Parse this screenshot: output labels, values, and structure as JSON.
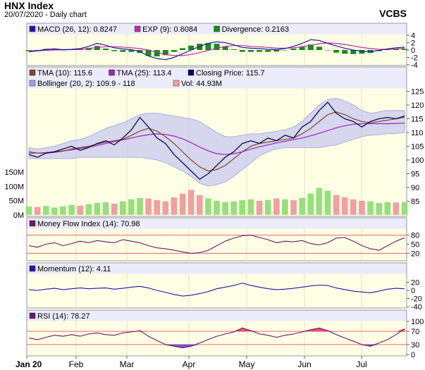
{
  "header": {
    "title": "HNX Index",
    "subtitle": "20/07/2020 - Daily chart",
    "brand": "VCBS"
  },
  "colors": {
    "plot_bg": "#ffffe6",
    "legend_bg": "#ebebfa",
    "grid": "#e2e2c0",
    "macd": "#1a1aa6",
    "exp": "#c02aa0",
    "divergence": "#1a8a1a",
    "tma10": "#7a4a2a",
    "tma25": "#a020c0",
    "close": "#0a0a50",
    "bollinger_fill": "#c8c8ee",
    "bollinger_line": "#a0a0e0",
    "vol_up": "#96e07a",
    "vol_down": "#f0a0a0",
    "mfi": "#6a1a6a",
    "momentum": "#1a1aa6",
    "rsi": "#6a1a6a",
    "ref_line": "#e06a6a",
    "rsi_over": "#e0506a",
    "rsi_under": "#6a5ae0"
  },
  "x_axis": {
    "labels": [
      "Jan 20",
      "Feb",
      "Mar",
      "Apr",
      "May",
      "Jun",
      "Jul"
    ]
  },
  "chart_data": [
    {
      "type": "line",
      "panel": "macd",
      "legend": [
        {
          "label": "MACD (26, 12): 0.8247",
          "color": "#1a1aa6"
        },
        {
          "label": "EXP (9): 0.6084",
          "color": "#c02aa0"
        },
        {
          "label": "Divergence: 0.2163",
          "color": "#1a8a1a"
        }
      ],
      "ylim": [
        -4,
        4
      ],
      "yticks": [
        "4",
        "2",
        "0",
        "-2",
        "-4"
      ],
      "series": [
        {
          "name": "MACD (26, 12)",
          "values": [
            -0.5,
            -0.2,
            0.2,
            0.3,
            0.1,
            0.2,
            0.4,
            1.0,
            1.8,
            1.3,
            0.6,
            0.3,
            0.1,
            -0.4,
            -1.6,
            -2.3,
            -2.6,
            -2.0,
            -1.0,
            0.0,
            1.0,
            1.8,
            2.2,
            2.0,
            1.4,
            0.7,
            0.5,
            0.4,
            0.2,
            0.1,
            0.4,
            1.0,
            1.8,
            2.8,
            2.6,
            1.8,
            1.1,
            0.5,
            0.0,
            -0.3,
            -0.4,
            -0.1,
            0.3,
            0.6,
            0.8
          ]
        },
        {
          "name": "EXP (9)",
          "values": [
            -0.2,
            -0.2,
            -0.1,
            0.0,
            0.1,
            0.1,
            0.2,
            0.4,
            0.7,
            0.9,
            0.9,
            0.8,
            0.6,
            0.4,
            0.0,
            -0.6,
            -1.2,
            -1.5,
            -1.5,
            -1.2,
            -0.7,
            -0.1,
            0.5,
            1.0,
            1.2,
            1.2,
            1.0,
            0.9,
            0.7,
            0.5,
            0.5,
            0.6,
            0.9,
            1.3,
            1.7,
            1.9,
            1.8,
            1.5,
            1.1,
            0.7,
            0.4,
            0.2,
            0.2,
            0.3,
            0.5
          ]
        },
        {
          "name": "Divergence",
          "values": [
            -0.3,
            0.0,
            0.3,
            0.3,
            0.0,
            0.1,
            0.2,
            0.6,
            1.1,
            0.4,
            -0.3,
            -0.5,
            -0.5,
            -0.8,
            -1.6,
            -1.7,
            -1.4,
            -0.5,
            0.5,
            1.2,
            1.7,
            1.9,
            1.7,
            1.0,
            0.2,
            -0.5,
            -0.5,
            -0.5,
            -0.5,
            -0.4,
            -0.1,
            0.4,
            0.9,
            1.5,
            0.9,
            -0.1,
            -0.7,
            -1.0,
            -1.1,
            -1.0,
            -0.8,
            -0.3,
            0.1,
            0.3,
            0.3
          ]
        }
      ]
    },
    {
      "type": "line",
      "panel": "price",
      "legend": [
        {
          "label": "TMA (10): 115.6",
          "color": "#7a4a2a"
        },
        {
          "label": "TMA (25): 113.4",
          "color": "#a020c0"
        },
        {
          "label": "Closing Price: 115.7",
          "color": "#0a0a50"
        },
        {
          "label": "Bollinger (20, 2): 109.9 - 118",
          "color": "#a0a0e0"
        },
        {
          "label": "Vol: 44.93M",
          "color": "#f0a0a0"
        }
      ],
      "ylim": [
        80,
        130
      ],
      "yticks": [
        "125",
        "120",
        "115",
        "110",
        "105",
        "100",
        "95",
        "90",
        "85"
      ],
      "series": [
        {
          "name": "Closing Price",
          "values": [
            102,
            101,
            102.5,
            103,
            104,
            105,
            103.5,
            104.5,
            106,
            107,
            105.5,
            108,
            111,
            115.5,
            112,
            108,
            106,
            102,
            99,
            96,
            93,
            95,
            98,
            101,
            103,
            106,
            107,
            106,
            108,
            107,
            109,
            108,
            112,
            114,
            118,
            121,
            117,
            115,
            114,
            112,
            114,
            115,
            115.5,
            115,
            116
          ]
        },
        {
          "name": "TMA (10)",
          "values": [
            103,
            102.5,
            102.5,
            102.8,
            103.2,
            104,
            104.5,
            105,
            105.8,
            106.5,
            107,
            107.5,
            109,
            110.5,
            111.5,
            110.5,
            108.5,
            106,
            103,
            100,
            97.5,
            96,
            96.5,
            98,
            100.5,
            103,
            105,
            106,
            106.5,
            107,
            107.5,
            108,
            109.5,
            111.5,
            114,
            116.5,
            117.5,
            116.5,
            115,
            114,
            113.5,
            114,
            114.5,
            115,
            115.6
          ]
        },
        {
          "name": "TMA (25)",
          "values": [
            102.5,
            102.5,
            102.7,
            103,
            103.3,
            103.7,
            104.2,
            104.7,
            105.3,
            106,
            106.7,
            107.3,
            108,
            108.7,
            109.2,
            109.5,
            109.3,
            108.7,
            107.7,
            106.3,
            104.7,
            103.3,
            102.3,
            102,
            102.3,
            103,
            104,
            104.8,
            105.5,
            106.2,
            106.8,
            107.4,
            108,
            108.8,
            109.7,
            110.7,
            111.7,
            112.5,
            113,
            113.2,
            113.2,
            113.2,
            113.2,
            113.3,
            113.4
          ]
        },
        {
          "name": "Bollinger upper",
          "values": [
            104.5,
            104,
            104.5,
            105,
            106,
            107,
            107.5,
            108.5,
            110,
            111.5,
            112.5,
            113.5,
            115,
            116.5,
            117,
            117,
            116.5,
            116,
            115.5,
            115,
            114,
            112,
            110,
            108.5,
            108.5,
            109,
            109.5,
            109.5,
            110,
            110.5,
            111,
            112,
            114,
            117,
            120,
            122,
            122.5,
            121.5,
            120,
            118,
            117,
            117.5,
            118,
            118,
            118
          ]
        },
        {
          "name": "Bollinger lower",
          "values": [
            100.5,
            100.5,
            100.5,
            100.5,
            100.5,
            100.5,
            101,
            101,
            101,
            101,
            101,
            101,
            101,
            101,
            100.5,
            100,
            99,
            97.5,
            96,
            94,
            91.5,
            90.5,
            91,
            92,
            94,
            96.5,
            99,
            101.5,
            103,
            104,
            104.5,
            104.5,
            104.5,
            104.5,
            104.5,
            105,
            105.5,
            106.5,
            107.5,
            108.5,
            109,
            109.2,
            109.5,
            109.7,
            109.9
          ]
        }
      ]
    },
    {
      "type": "bar",
      "panel": "volume",
      "ylim": [
        0,
        160
      ],
      "yticks": [
        "150M",
        "100M",
        "50M",
        "0M"
      ],
      "series": [
        {
          "name": "Vol",
          "values": [
            30,
            28,
            32,
            26,
            30,
            35,
            33,
            38,
            42,
            45,
            40,
            48,
            55,
            60,
            58,
            52,
            48,
            62,
            75,
            88,
            70,
            58,
            50,
            45,
            48,
            52,
            55,
            50,
            53,
            58,
            55,
            52,
            60,
            75,
            95,
            85,
            70,
            62,
            55,
            50,
            48,
            42,
            45,
            44,
            45
          ]
        },
        {
          "name": "Direction",
          "values": [
            1,
            0,
            1,
            1,
            1,
            1,
            0,
            1,
            1,
            1,
            0,
            1,
            1,
            1,
            0,
            0,
            0,
            0,
            0,
            0,
            0,
            1,
            1,
            1,
            1,
            1,
            1,
            0,
            1,
            0,
            1,
            0,
            1,
            1,
            1,
            1,
            0,
            0,
            0,
            0,
            1,
            1,
            1,
            0,
            1
          ]
        }
      ]
    },
    {
      "type": "line",
      "panel": "mfi",
      "legend": [
        {
          "label": "Money Flow Index (14): 70.98",
          "color": "#6a1a6a"
        }
      ],
      "ylim": [
        0,
        100
      ],
      "ref": [
        20,
        80
      ],
      "yticks": [
        "80",
        "50",
        "20"
      ],
      "series": [
        {
          "name": "Money Flow Index (14)",
          "values": [
            45,
            40,
            50,
            55,
            45,
            52,
            60,
            55,
            62,
            58,
            55,
            65,
            60,
            55,
            45,
            38,
            35,
            30,
            25,
            20,
            22,
            30,
            45,
            60,
            70,
            78,
            80,
            72,
            65,
            55,
            60,
            58,
            62,
            52,
            48,
            55,
            70,
            72,
            60,
            45,
            35,
            30,
            45,
            60,
            71
          ]
        }
      ]
    },
    {
      "type": "line",
      "panel": "momentum",
      "legend": [
        {
          "label": "Momentum (12): 4.11",
          "color": "#1a1aa6"
        }
      ],
      "ylim": [
        -40,
        40
      ],
      "yticks": [
        "20",
        "0",
        "-20",
        "-40"
      ],
      "series": [
        {
          "name": "Momentum (12)",
          "values": [
            2,
            0,
            3,
            5,
            2,
            4,
            6,
            4,
            5,
            6,
            3,
            5,
            8,
            10,
            6,
            0,
            -5,
            -10,
            -14,
            -12,
            -8,
            -3,
            4,
            8,
            12,
            18,
            12,
            8,
            4,
            2,
            3,
            5,
            8,
            11,
            13,
            12,
            6,
            2,
            -2,
            -4,
            -6,
            -2,
            3,
            5,
            4
          ]
        }
      ]
    },
    {
      "type": "line",
      "panel": "rsi",
      "legend": [
        {
          "label": "RSI (14): 78.27",
          "color": "#6a1a6a"
        }
      ],
      "ylim": [
        0,
        100
      ],
      "ref": [
        30,
        70
      ],
      "yticks": [
        "100",
        "70",
        "30",
        "0"
      ],
      "series": [
        {
          "name": "RSI (14)",
          "values": [
            50,
            45,
            52,
            58,
            55,
            60,
            55,
            62,
            65,
            60,
            58,
            65,
            68,
            72,
            55,
            42,
            30,
            25,
            20,
            25,
            35,
            45,
            55,
            62,
            68,
            80,
            72,
            62,
            58,
            52,
            58,
            62,
            68,
            75,
            80,
            72,
            60,
            50,
            40,
            30,
            25,
            35,
            45,
            60,
            78
          ]
        }
      ]
    }
  ]
}
